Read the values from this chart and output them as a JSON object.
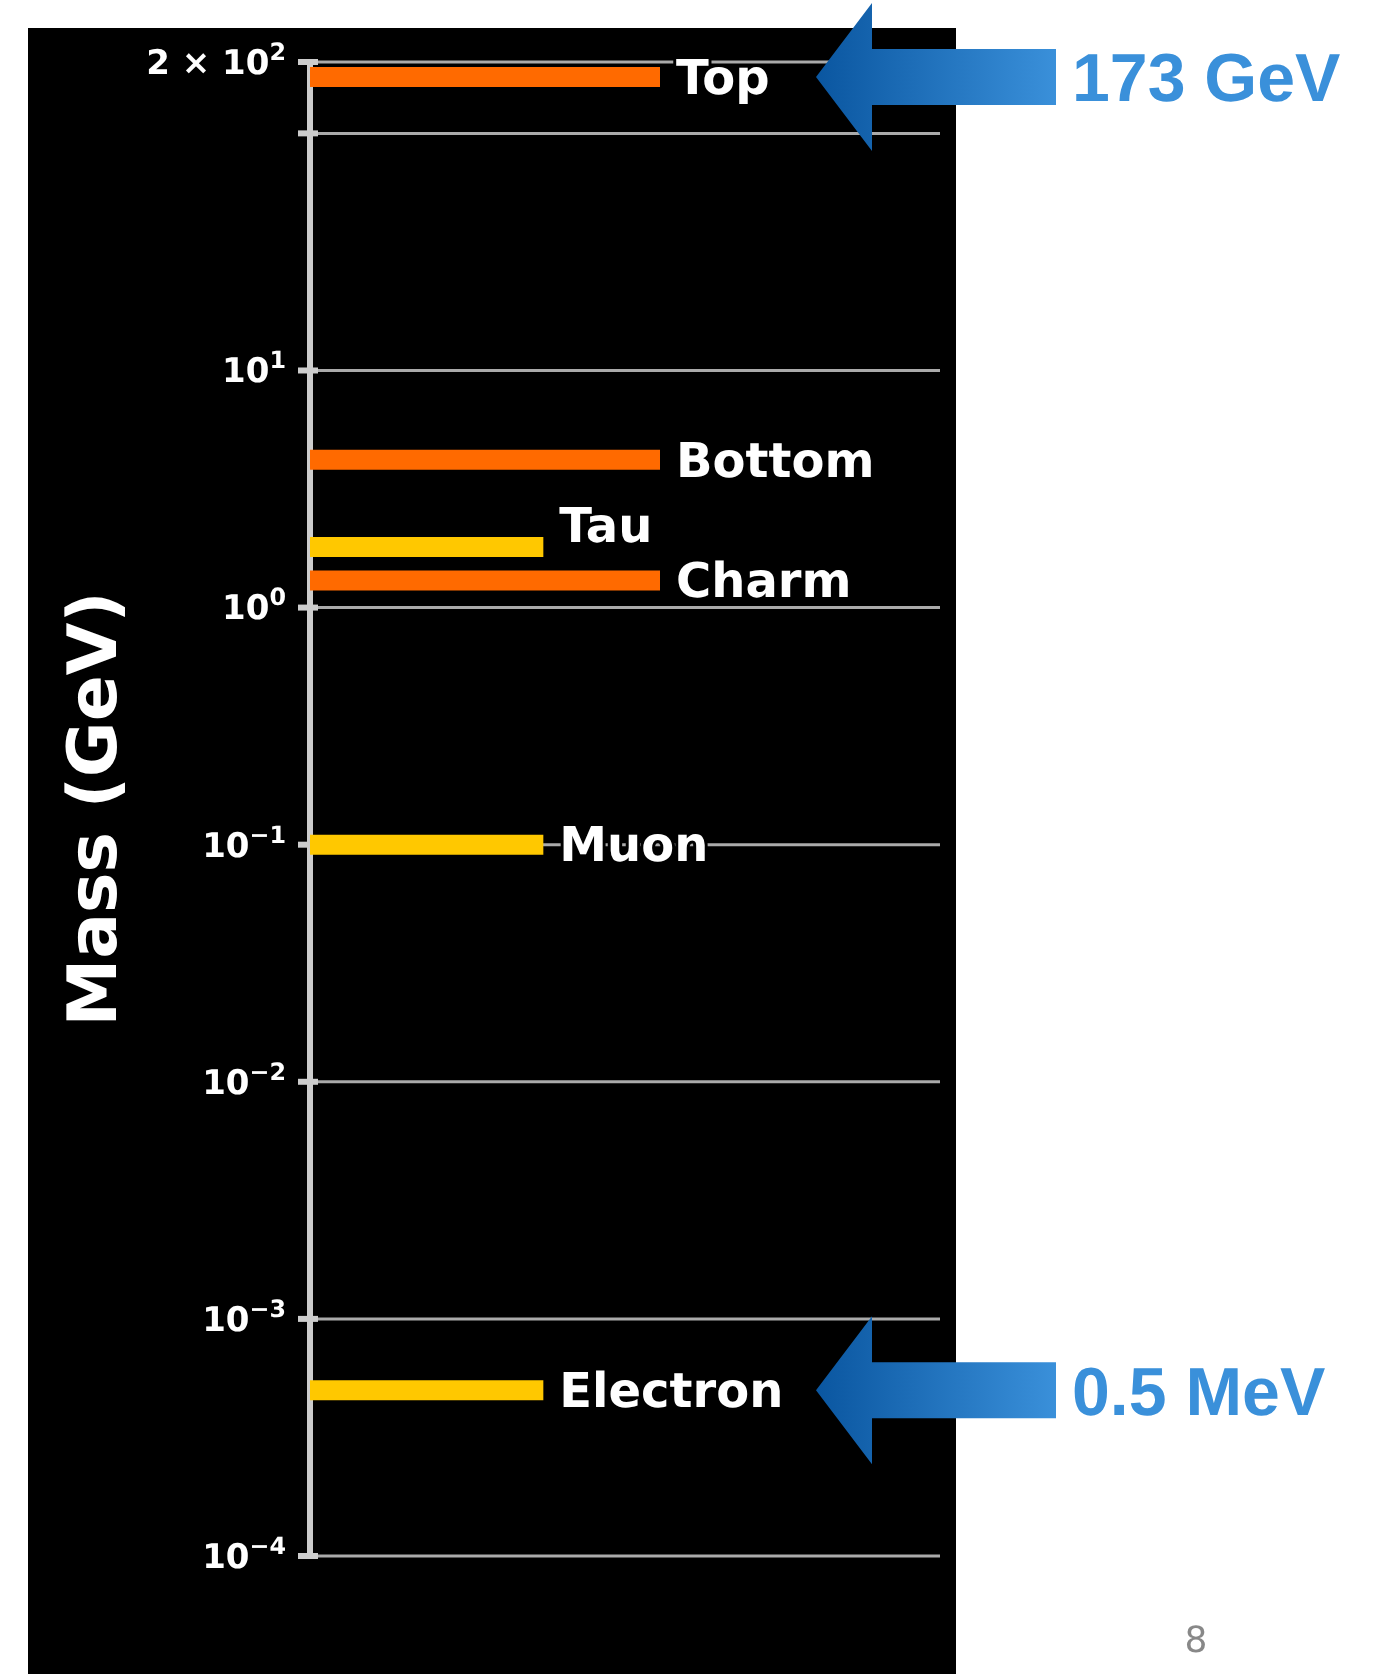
{
  "chart_data": {
    "type": "line",
    "ylabel": "Mass (GeV)",
    "log": "y",
    "ylim": [
      0.0001,
      200
    ],
    "yticks": [
      {
        "value": 0.0001,
        "label": "10$^{−4}$"
      },
      {
        "value": 0.001,
        "label": "10$^{−3}$"
      },
      {
        "value": 0.01,
        "label": "10$^{−2}$"
      },
      {
        "value": 0.1,
        "label": "10$^{−1}$"
      },
      {
        "value": 1,
        "label": "10$^{0}$"
      },
      {
        "value": 10,
        "label": "10$^{1}$"
      },
      {
        "value": 100,
        "label": null
      },
      {
        "value": 200,
        "label": "2 × 10$^{2}$"
      }
    ],
    "grid": "y",
    "tick_labels": "y",
    "marker": "none",
    "categories": [
      null,
      null,
      null,
      null
    ],
    "series": [
      {
        "name": "Top",
        "color": "#ff6a00",
        "values": [
          173,
          173,
          173,
          173
        ]
      },
      {
        "name": "Bottom",
        "color": "#ff6a00",
        "values": [
          4.2,
          4.2,
          4.2,
          4.2
        ]
      },
      {
        "name": "Tau",
        "color": "#ffc800",
        "values": [
          1.8,
          1.8,
          1.8,
          null
        ]
      },
      {
        "name": "Charm",
        "color": "#ff6a00",
        "values": [
          1.3,
          1.3,
          1.3,
          1.3
        ]
      },
      {
        "name": "Muon",
        "color": "#ffc800",
        "values": [
          0.1,
          0.1,
          0.1,
          null
        ]
      },
      {
        "name": "Electron",
        "color": "#ffc800",
        "values": [
          0.0005,
          0.0005,
          0.0005,
          null
        ]
      }
    ],
    "annotations": [
      "173 GeV",
      "0.5 MeV",
      "8"
    ]
  }
}
